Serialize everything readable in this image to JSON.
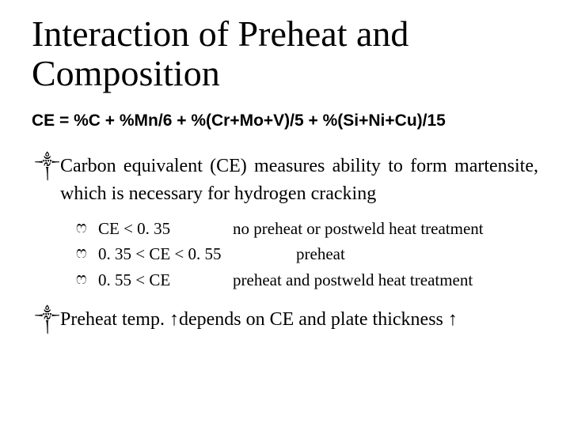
{
  "title": "Interaction of Preheat and Composition",
  "formula": "CE = %C + %Mn/6 + %(Cr+Mo+V)/5 + %(Si+Ni+Cu)/15",
  "bullet_marker": "༒",
  "sub_marker": "ෆ",
  "bullet1": "Carbon equivalent (CE) measures ability to form martensite, which is necessary for hydrogen cracking",
  "sub1_range": "CE < 0. 35",
  "sub1_desc": "no preheat or postweld heat treatment",
  "sub2_range": "0. 35 < CE < 0. 55",
  "sub2_desc": "preheat",
  "sub3_range": "0. 55 < CE",
  "sub3_desc": "preheat and postweld heat treatment",
  "bullet2_a": "Preheat temp. ",
  "bullet2_arrow": "↑",
  "bullet2_b": "depends on CE and plate thickness ",
  "colors": {
    "background": "#ffffff",
    "text": "#000000"
  },
  "fonts": {
    "title_family": "Palatino Linotype",
    "title_size_pt": 34,
    "formula_family": "Arial",
    "formula_size_pt": 16,
    "body_family": "Palatino Linotype",
    "body_size_pt": 18,
    "sub_size_pt": 16
  }
}
